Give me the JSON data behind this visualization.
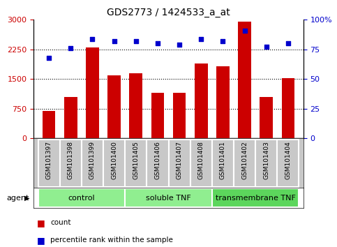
{
  "title": "GDS2773 / 1424533_a_at",
  "samples": [
    "GSM101397",
    "GSM101398",
    "GSM101399",
    "GSM101400",
    "GSM101405",
    "GSM101406",
    "GSM101407",
    "GSM101408",
    "GSM101401",
    "GSM101402",
    "GSM101403",
    "GSM101404"
  ],
  "counts": [
    690,
    1050,
    2300,
    1600,
    1650,
    1150,
    1150,
    1900,
    1820,
    2960,
    1050,
    1530
  ],
  "percentiles": [
    68,
    76,
    84,
    82,
    82,
    80,
    79,
    84,
    82,
    91,
    77,
    80
  ],
  "ylim_left": [
    0,
    3000
  ],
  "ylim_right": [
    0,
    100
  ],
  "yticks_left": [
    0,
    750,
    1500,
    2250,
    3000
  ],
  "yticks_right": [
    0,
    25,
    50,
    75,
    100
  ],
  "ytick_labels_left": [
    "0",
    "750",
    "1500",
    "2250",
    "3000"
  ],
  "ytick_labels_right": [
    "0",
    "25",
    "50",
    "75",
    "100%"
  ],
  "groups": [
    {
      "label": "control",
      "start": 0,
      "end": 4,
      "color": "#90EE90"
    },
    {
      "label": "soluble TNF",
      "start": 4,
      "end": 8,
      "color": "#90EE90"
    },
    {
      "label": "transmembrane TNF",
      "start": 8,
      "end": 12,
      "color": "#5CD65C"
    }
  ],
  "bar_color": "#CC0000",
  "dot_color": "#0000CC",
  "tick_color_left": "#CC0000",
  "tick_color_right": "#0000CC",
  "plot_bg": "#FFFFFF",
  "label_bg": "#C8C8C8",
  "agent_label": "agent",
  "legend_items": [
    "count",
    "percentile rank within the sample"
  ],
  "legend_colors": [
    "#CC0000",
    "#0000CC"
  ]
}
